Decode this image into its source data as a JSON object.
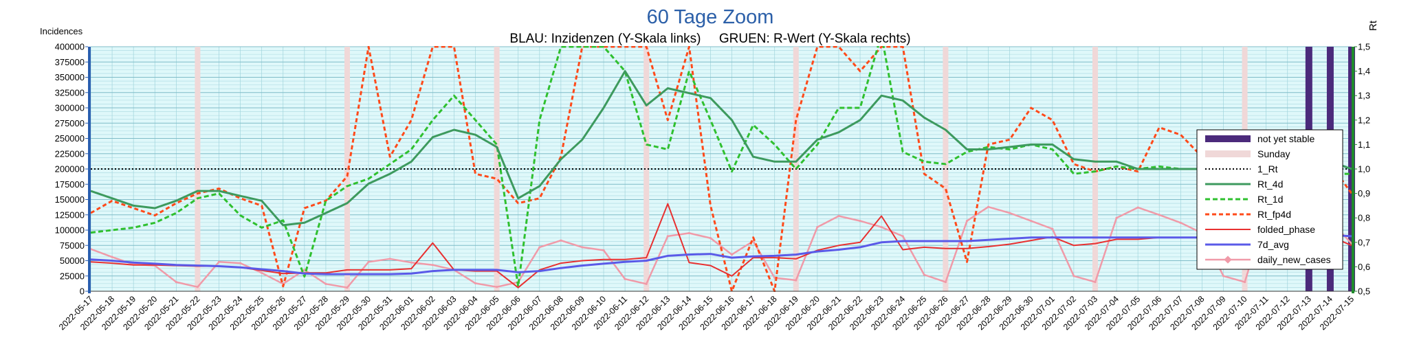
{
  "chart_data": {
    "type": "line",
    "title": "60 Tage Zoom",
    "subtitle": "BLAU: Inzidenzen (Y-Skala links)     GRUEN: R-Wert (Y-Skala rechts)",
    "ylabel": "Incidences",
    "y2label": "Rt",
    "ylim": [
      0,
      400000
    ],
    "y2lim": [
      0.5,
      1.5
    ],
    "yticks": [
      "0",
      "25000",
      "50000",
      "75000",
      "100000",
      "125000",
      "150000",
      "175000",
      "200000",
      "225000",
      "250000",
      "275000",
      "300000",
      "325000",
      "350000",
      "375000",
      "400000"
    ],
    "y2ticks": [
      "0,5",
      "0,6",
      "0,7",
      "0,8",
      "0,9",
      "1,0",
      "1,1",
      "1,2",
      "1,3",
      "1,4",
      "1,5"
    ],
    "x": [
      "2022-05-17",
      "2022-05-18",
      "2022-05-19",
      "2022-05-20",
      "2022-05-21",
      "2022-05-22",
      "2022-05-23",
      "2022-05-24",
      "2022-05-25",
      "2022-05-26",
      "2022-05-27",
      "2022-05-28",
      "2022-05-29",
      "2022-05-30",
      "2022-05-31",
      "2022-06-01",
      "2022-06-02",
      "2022-06-03",
      "2022-06-04",
      "2022-06-05",
      "2022-06-06",
      "2022-06-07",
      "2022-06-08",
      "2022-06-09",
      "2022-06-10",
      "2022-06-11",
      "2022-06-12",
      "2022-06-13",
      "2022-06-14",
      "2022-06-15",
      "2022-06-16",
      "2022-06-17",
      "2022-06-18",
      "2022-06-19",
      "2022-06-20",
      "2022-06-21",
      "2022-06-22",
      "2022-06-23",
      "2022-06-24",
      "2022-06-25",
      "2022-06-26",
      "2022-06-27",
      "2022-06-28",
      "2022-06-29",
      "2022-06-30",
      "2022-07-01",
      "2022-07-02",
      "2022-07-03",
      "2022-07-04",
      "2022-07-05",
      "2022-07-06",
      "2022-07-07",
      "2022-07-08",
      "2022-07-09",
      "2022-07-10",
      "2022-07-11",
      "2022-07-12",
      "2022-07-13",
      "2022-07-14",
      "2022-07-15"
    ],
    "grid": true,
    "legend_position": "right",
    "sundays": [
      "2022-05-22",
      "2022-05-29",
      "2022-06-05",
      "2022-06-12",
      "2022-06-19",
      "2022-06-26",
      "2022-07-03",
      "2022-07-10"
    ],
    "not_yet_stable": [
      "2022-07-13",
      "2022-07-14",
      "2022-07-15"
    ],
    "reference_line": {
      "name": "1_Rt",
      "value": 1.0
    },
    "series": [
      {
        "name": "not yet stable",
        "color": "#4b2a7b",
        "style": "band"
      },
      {
        "name": "Sunday",
        "color": "#f0d8d8",
        "style": "band"
      },
      {
        "name": "1_Rt",
        "color": "#000000",
        "style": "dotted"
      },
      {
        "name": "Rt_4d",
        "axis": "right",
        "color": "#3d9a5e",
        "style": "solid",
        "values": [
          0.91,
          0.88,
          0.85,
          0.84,
          0.87,
          0.91,
          0.91,
          0.89,
          0.87,
          0.77,
          0.78,
          0.82,
          0.86,
          0.94,
          0.98,
          1.03,
          1.13,
          1.16,
          1.14,
          1.09,
          0.88,
          0.93,
          1.04,
          1.12,
          1.25,
          1.4,
          1.26,
          1.33,
          1.31,
          1.29,
          1.2,
          1.05,
          1.03,
          1.03,
          1.12,
          1.15,
          1.2,
          1.3,
          1.28,
          1.21,
          1.16,
          1.08,
          1.08,
          1.09,
          1.1,
          1.1,
          1.04,
          1.03,
          1.03,
          1.0,
          1.0,
          1.0,
          1.0,
          1.0,
          1.0,
          1.02,
          1.03,
          1.03,
          1.03,
          1.0
        ]
      },
      {
        "name": "Rt_1d",
        "axis": "right",
        "color": "#2fc02f",
        "style": "dashed",
        "values": [
          0.74,
          0.75,
          0.76,
          0.78,
          0.82,
          0.88,
          0.9,
          0.81,
          0.76,
          0.79,
          0.56,
          0.87,
          0.93,
          0.96,
          1.02,
          1.08,
          1.2,
          1.3,
          1.2,
          1.1,
          0.52,
          1.2,
          1.5,
          1.5,
          1.5,
          1.4,
          1.1,
          1.08,
          1.4,
          1.2,
          0.99,
          1.18,
          1.1,
          1.0,
          1.1,
          1.25,
          1.25,
          1.55,
          1.07,
          1.03,
          1.02,
          1.07,
          1.09,
          1.08,
          1.1,
          1.08,
          0.98,
          0.99,
          1.01,
          1.0,
          1.01,
          1.0,
          1.0,
          1.0,
          1.01,
          1.03,
          1.03,
          1.02,
          0.98,
          0.98
        ]
      },
      {
        "name": "Rt_fp4d",
        "axis": "right",
        "color": "#ff4a1a",
        "style": "dashed",
        "values": [
          0.82,
          0.87,
          0.84,
          0.81,
          0.86,
          0.9,
          0.92,
          0.88,
          0.85,
          0.52,
          0.84,
          0.87,
          0.97,
          1.5,
          1.05,
          1.2,
          1.5,
          1.5,
          0.98,
          0.96,
          0.86,
          0.88,
          1.05,
          1.5,
          1.5,
          1.5,
          1.5,
          1.2,
          1.5,
          0.85,
          0.5,
          0.72,
          0.5,
          1.2,
          1.5,
          1.5,
          1.4,
          1.5,
          1.5,
          0.98,
          0.92,
          0.62,
          1.1,
          1.12,
          1.25,
          1.2,
          1.02,
          0.99,
          1.01,
          0.99,
          1.17,
          1.14,
          1.05,
          1.05,
          1.04,
          1.06,
          1.06,
          1.04,
          1.02,
          0.9
        ]
      },
      {
        "name": "folded_phase",
        "axis": "left",
        "color": "#e83030",
        "style": "solid",
        "values": [
          48000,
          46000,
          43000,
          43000,
          42000,
          41000,
          41000,
          39000,
          34000,
          29000,
          30000,
          30000,
          35000,
          35000,
          35000,
          37000,
          79000,
          35000,
          33000,
          33000,
          6000,
          35000,
          46000,
          50000,
          52000,
          52000,
          55000,
          143000,
          47000,
          42000,
          25000,
          55000,
          55000,
          53000,
          67000,
          75000,
          80000,
          123000,
          68000,
          72000,
          70000,
          70000,
          73000,
          77000,
          83000,
          89000,
          75000,
          78000,
          85000,
          85000,
          88000,
          88000,
          88000,
          90000,
          90000,
          95000,
          95000,
          92000,
          90000,
          75000
        ]
      },
      {
        "name": "7d_avg",
        "axis": "left",
        "color": "#5a5ae8",
        "style": "solid",
        "values": [
          52000,
          50000,
          47000,
          45000,
          43000,
          42000,
          41000,
          39000,
          36000,
          33000,
          29000,
          28000,
          28000,
          28000,
          28000,
          29000,
          33000,
          35000,
          35000,
          35000,
          31000,
          33000,
          38000,
          42000,
          45000,
          48000,
          50000,
          58000,
          60000,
          61000,
          55000,
          57000,
          58000,
          60000,
          65000,
          68000,
          72000,
          80000,
          82000,
          82000,
          82000,
          82000,
          84000,
          86000,
          88000,
          88000,
          88000,
          88000,
          88000,
          88000,
          88000,
          88000,
          88000,
          88000,
          90000,
          91000,
          91000,
          91000,
          92000,
          90000
        ]
      },
      {
        "name": "daily_new_cases",
        "axis": "left",
        "color": "#f09aa8",
        "style": "solid-marker",
        "values": [
          69000,
          56000,
          44000,
          42000,
          15000,
          7000,
          48000,
          46000,
          30000,
          12000,
          35000,
          12000,
          6000,
          48000,
          53000,
          47000,
          43000,
          35000,
          13000,
          7000,
          15000,
          72000,
          83000,
          72000,
          67000,
          20000,
          12000,
          90000,
          95000,
          87000,
          60000,
          82000,
          22000,
          18000,
          105000,
          123000,
          115000,
          105000,
          90000,
          27000,
          15000,
          115000,
          138000,
          128000,
          115000,
          102000,
          25000,
          15000,
          120000,
          137000,
          125000,
          112000,
          95000,
          25000,
          15000,
          130000,
          145000,
          135000,
          115000,
          78000
        ]
      }
    ]
  }
}
